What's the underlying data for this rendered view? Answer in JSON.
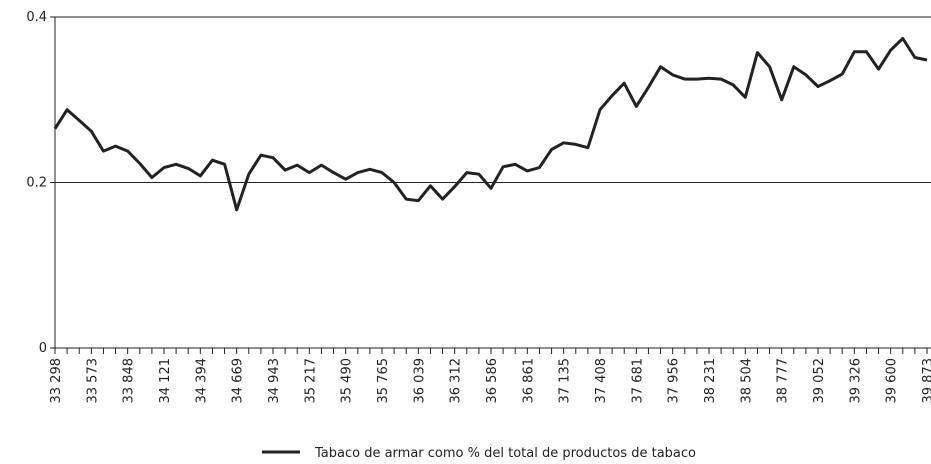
{
  "chart_data": {
    "type": "line",
    "categories": [
      "33 298",
      null,
      null,
      "33 573",
      null,
      null,
      "33 848",
      null,
      null,
      "34 121",
      null,
      null,
      "34 394",
      null,
      null,
      "34 669",
      null,
      null,
      "34 943",
      null,
      null,
      "35 217",
      null,
      null,
      "35 490",
      null,
      null,
      "35 765",
      null,
      null,
      "36 039",
      null,
      null,
      "36 312",
      null,
      null,
      "36 586",
      null,
      null,
      "36 861",
      null,
      null,
      "37 135",
      null,
      null,
      "37 408",
      null,
      null,
      "37 681",
      null,
      null,
      "37 956",
      null,
      null,
      "38 231",
      null,
      null,
      "38 504",
      null,
      null,
      "38 777",
      null,
      null,
      "39 052",
      null,
      null,
      "39 326",
      null,
      null,
      "39 600",
      null,
      null,
      "39 873"
    ],
    "series": [
      {
        "name": "Tabaco de armar como % del total de productos de tabaco",
        "color": "#222222",
        "values": [
          0.265,
          0.288,
          0.275,
          0.262,
          0.238,
          0.244,
          0.238,
          0.223,
          0.206,
          0.218,
          0.222,
          0.217,
          0.208,
          0.227,
          0.222,
          0.167,
          0.21,
          0.233,
          0.23,
          0.215,
          0.221,
          0.212,
          0.221,
          0.212,
          0.204,
          0.212,
          0.216,
          0.212,
          0.2,
          0.18,
          0.178,
          0.196,
          0.18,
          0.195,
          0.212,
          0.21,
          0.193,
          0.219,
          0.222,
          0.214,
          0.218,
          0.24,
          0.248,
          0.246,
          0.242,
          0.288,
          0.305,
          0.32,
          0.292,
          0.315,
          0.34,
          0.33,
          0.325,
          0.325,
          0.326,
          0.325,
          0.318,
          0.303,
          0.357,
          0.34,
          0.3,
          0.34,
          0.33,
          0.316,
          0.323,
          0.331,
          0.358,
          0.358,
          0.337,
          0.36,
          0.374,
          0.351,
          0.348
        ]
      }
    ],
    "ylim": [
      0,
      0.4
    ],
    "yticks": [
      0,
      0.2,
      0.4
    ],
    "grid": true,
    "legend": "bottom"
  }
}
